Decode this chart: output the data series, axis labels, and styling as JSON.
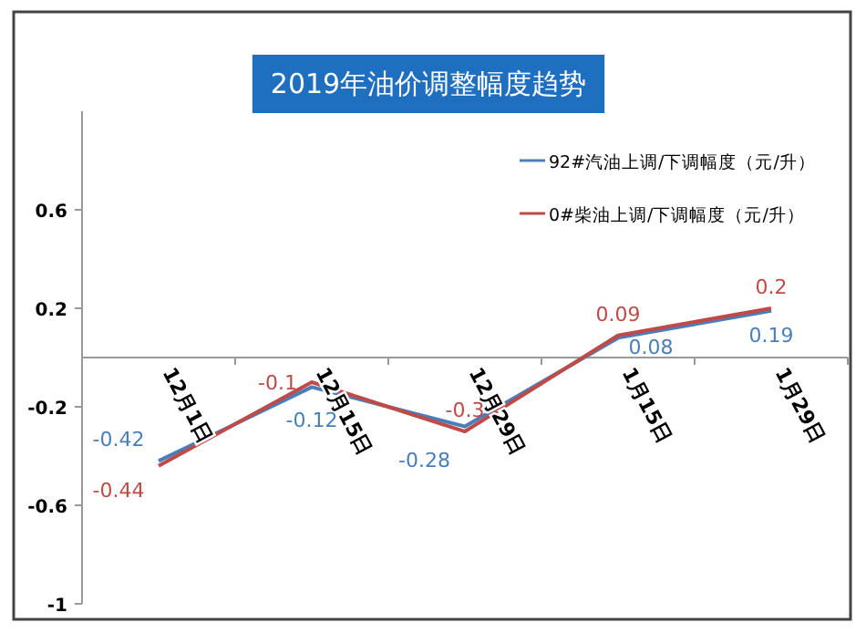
{
  "chart_data": {
    "type": "line",
    "title": "2019年油价调整幅度趋势",
    "categories": [
      "12月1日",
      "12月15日",
      "12月29日",
      "1月15日",
      "1月29日"
    ],
    "series": [
      {
        "name": "92#汽油上调/下调幅度（元/升）",
        "color": "#4a7ebb",
        "values": [
          -0.42,
          -0.12,
          -0.28,
          0.08,
          0.19
        ]
      },
      {
        "name": "0#柴油上调/下调幅度（元/升）",
        "color": "#be4b48",
        "values": [
          -0.44,
          -0.1,
          -0.3,
          0.09,
          0.2
        ]
      }
    ],
    "ylim": [
      -1,
      1
    ],
    "yticks": [
      -1,
      -0.6,
      -0.2,
      0.2,
      0.6
    ],
    "legend": "top right",
    "data_labels": true,
    "line_style": "solid"
  }
}
